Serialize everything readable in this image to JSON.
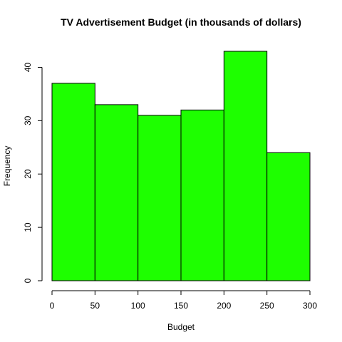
{
  "chart_data": {
    "type": "bar",
    "title": "TV Advertisement Budget (in thousands of dollars)",
    "xlabel": "Budget",
    "ylabel": "Frequency",
    "bins": [
      {
        "from": 0,
        "to": 50,
        "count": 37
      },
      {
        "from": 50,
        "to": 100,
        "count": 33
      },
      {
        "from": 100,
        "to": 150,
        "count": 31
      },
      {
        "from": 150,
        "to": 200,
        "count": 32
      },
      {
        "from": 200,
        "to": 250,
        "count": 43
      },
      {
        "from": 250,
        "to": 300,
        "count": 24
      }
    ],
    "xlim": [
      0,
      300
    ],
    "ylim": [
      0,
      43
    ],
    "x_ticks": [
      0,
      50,
      100,
      150,
      200,
      250,
      300
    ],
    "y_ticks": [
      0,
      10,
      20,
      30,
      40
    ],
    "bar_color": "#1eff00",
    "grid": false
  }
}
